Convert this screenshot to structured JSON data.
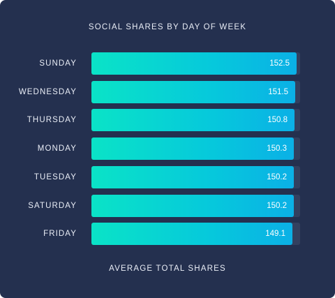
{
  "chart_data": {
    "type": "bar",
    "orientation": "horizontal",
    "title": "SOCIAL SHARES BY DAY OF WEEK",
    "xlabel": "AVERAGE TOTAL SHARES",
    "ylabel": "",
    "categories": [
      "SUNDAY",
      "WEDNESDAY",
      "THURSDAY",
      "MONDAY",
      "TUESDAY",
      "SATURDAY",
      "FRIDAY"
    ],
    "values": [
      152.5,
      151.5,
      150.8,
      150.3,
      150.2,
      150.2,
      149.1
    ],
    "value_labels": [
      "152.5",
      "151.5",
      "150.8",
      "150.3",
      "150.2",
      "150.2",
      "149.1"
    ],
    "xlim": [
      0,
      155
    ],
    "grid": false,
    "legend": "none",
    "colors": {
      "background": "#24304f",
      "track": "#33405f",
      "bar_start": "#0ae3c7",
      "bar_end": "#0bb0e6",
      "text": "#e9edf6"
    }
  }
}
